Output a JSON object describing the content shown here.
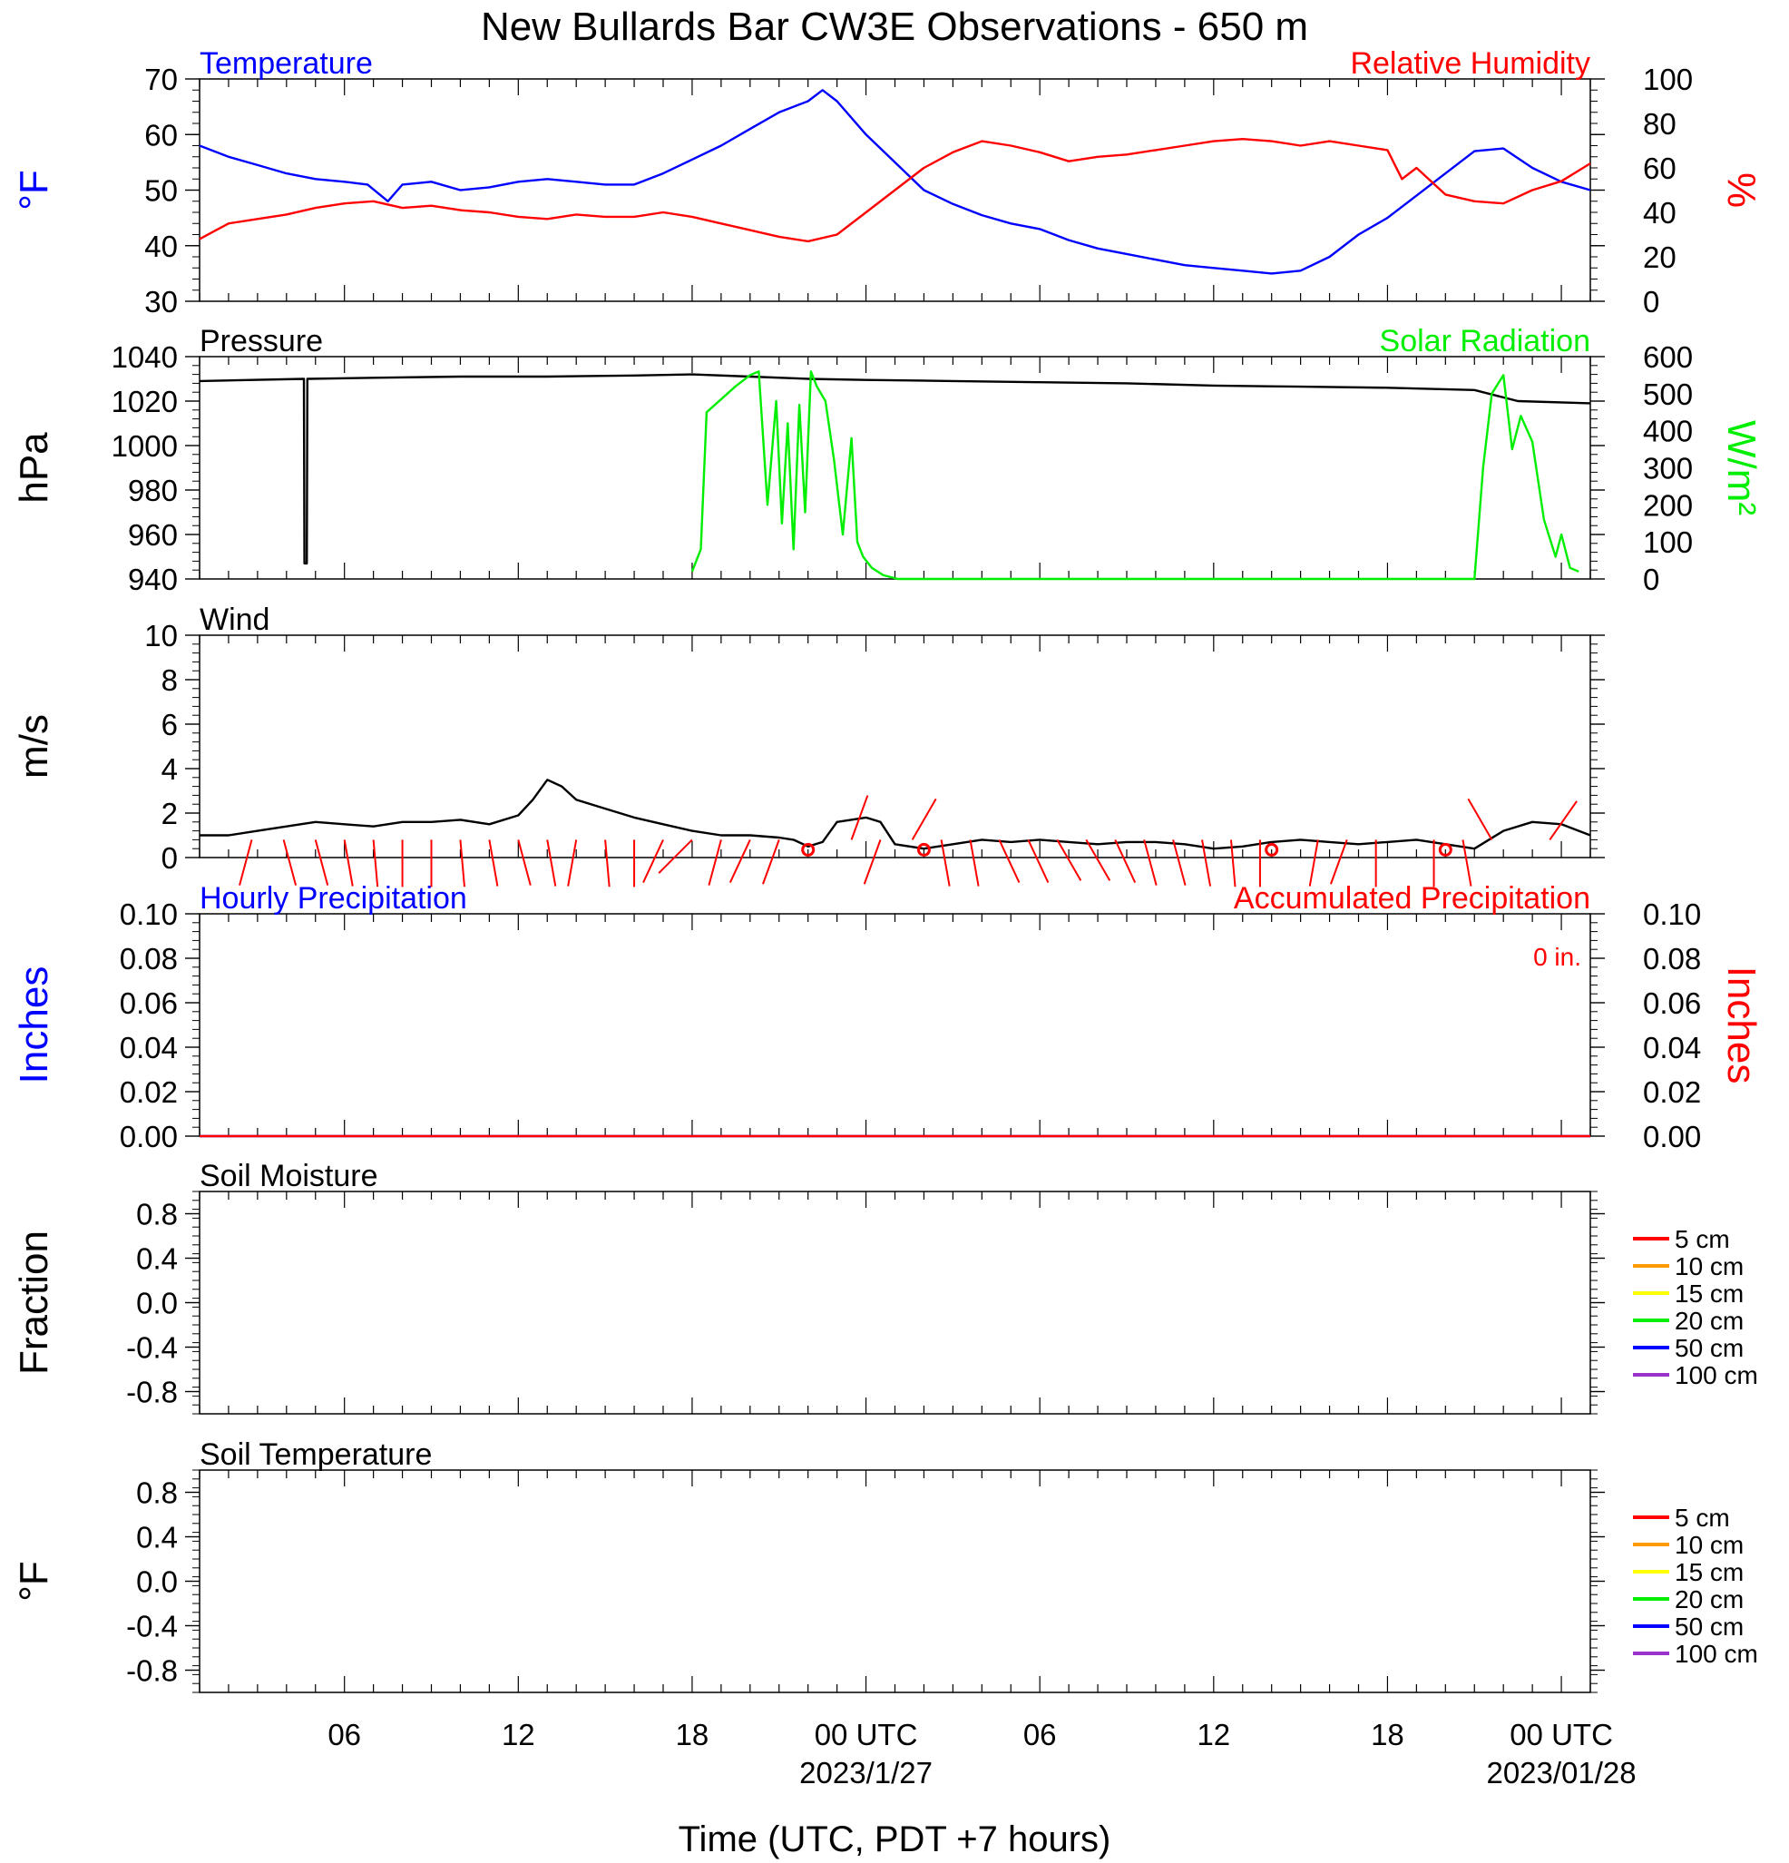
{
  "title": "New Bullards Bar CW3E Observations - 650 m",
  "x_axis": {
    "label": "Time (UTC, PDT +7 hours)",
    "range_hours": [
      0,
      48
    ],
    "ticks": [
      {
        "t": 5,
        "label": "06",
        "date": ""
      },
      {
        "t": 11,
        "label": "12",
        "date": ""
      },
      {
        "t": 17,
        "label": "18",
        "date": ""
      },
      {
        "t": 23,
        "label": "00 UTC",
        "date": "2023/1/27"
      },
      {
        "t": 29,
        "label": "06",
        "date": ""
      },
      {
        "t": 35,
        "label": "12",
        "date": ""
      },
      {
        "t": 41,
        "label": "18",
        "date": ""
      },
      {
        "t": 47,
        "label": "00 UTC",
        "date": "2023/01/28"
      }
    ]
  },
  "colors": {
    "blue": "#0000ff",
    "red": "#ff0000",
    "green": "#00ee00",
    "black": "#000000"
  },
  "chart_data": [
    {
      "type": "line",
      "title_left": "Temperature",
      "title_right": "Relative Humidity",
      "ylabel_left": "°F",
      "ylabel_right": "%",
      "ylim_left": [
        30,
        70
      ],
      "yticks_left": [
        "30",
        "40",
        "50",
        "60",
        "70"
      ],
      "ylim_right": [
        0,
        100
      ],
      "yticks_right": [
        "0",
        "20",
        "40",
        "60",
        "80",
        "100"
      ],
      "series": [
        {
          "name": "Temperature",
          "axis": "left",
          "color": "#0000ff",
          "x": [
            0,
            1,
            2,
            3,
            4,
            5,
            5.8,
            6.5,
            7,
            8,
            9,
            10,
            11,
            12,
            13,
            14,
            15,
            16,
            17,
            18,
            19,
            20,
            21,
            21.5,
            22,
            23,
            24,
            25,
            26,
            27,
            28,
            29,
            30,
            31,
            32,
            33,
            34,
            35,
            36,
            37,
            38,
            39,
            40,
            41,
            42,
            43,
            44,
            45,
            46,
            47,
            48
          ],
          "y": [
            58,
            56,
            54.5,
            53,
            52,
            51.5,
            51,
            48,
            51,
            51.5,
            50,
            50.5,
            51.5,
            52,
            51.5,
            51,
            51,
            53,
            55.5,
            58,
            61,
            64,
            66,
            68,
            66,
            60,
            55,
            50,
            47.5,
            45.5,
            44,
            43,
            41,
            39.5,
            38.5,
            37.5,
            36.5,
            36,
            35.5,
            35,
            35.5,
            38,
            42,
            45,
            49,
            53,
            57,
            57.5,
            54,
            51.5,
            50
          ]
        },
        {
          "name": "Relative Humidity",
          "axis": "right",
          "color": "#ff0000",
          "x": [
            0,
            1,
            2,
            3,
            4,
            5,
            6,
            7,
            8,
            9,
            10,
            11,
            12,
            13,
            14,
            15,
            16,
            17,
            18,
            19,
            20,
            21,
            22,
            23,
            24,
            25,
            26,
            27,
            28,
            29,
            30,
            31,
            32,
            33,
            34,
            35,
            36,
            37,
            38,
            39,
            40,
            41,
            41.5,
            42,
            43,
            44,
            45,
            46,
            47,
            48
          ],
          "y": [
            28,
            35,
            37,
            39,
            42,
            44,
            45,
            42,
            43,
            41,
            40,
            38,
            37,
            39,
            38,
            38,
            40,
            38,
            35,
            32,
            29,
            27,
            30,
            40,
            50,
            60,
            67,
            72,
            70,
            67,
            63,
            65,
            66,
            68,
            70,
            72,
            73,
            72,
            70,
            72,
            70,
            68,
            55,
            60,
            48,
            45,
            44,
            50,
            54,
            62
          ]
        }
      ]
    },
    {
      "type": "line",
      "title_left": "Pressure",
      "title_right": "Solar Radiation",
      "ylabel_left": "hPa",
      "ylabel_right": "W/m²",
      "ylim_left": [
        940,
        1040
      ],
      "yticks_left": [
        "940",
        "960",
        "980",
        "1000",
        "1020",
        "1040"
      ],
      "ylim_right": [
        0,
        600
      ],
      "yticks_right": [
        "0",
        "100",
        "200",
        "300",
        "400",
        "500",
        "600"
      ],
      "series": [
        {
          "name": "Pressure",
          "axis": "left",
          "color": "#000000",
          "x": [
            0,
            3.6,
            3.62,
            3.7,
            3.72,
            6,
            9,
            12,
            15,
            17,
            19,
            21,
            23,
            26,
            29,
            32,
            35,
            38,
            41,
            44,
            45.5,
            48
          ],
          "y": [
            1029,
            1030,
            947,
            947,
            1030,
            1030.5,
            1031,
            1031,
            1031.5,
            1032,
            1031,
            1030,
            1029.5,
            1029,
            1028.5,
            1028,
            1027,
            1026.5,
            1026,
            1025,
            1020,
            1019
          ]
        },
        {
          "name": "Solar Radiation",
          "axis": "right",
          "color": "#00ee00",
          "x": [
            17,
            17.3,
            17.5,
            18.5,
            19,
            19.3,
            19.6,
            19.9,
            20.1,
            20.3,
            20.5,
            20.7,
            20.9,
            21.1,
            21.3,
            21.6,
            21.9,
            22.2,
            22.5,
            22.7,
            22.9,
            23.2,
            23.6,
            24.1,
            25,
            26,
            27,
            28,
            29,
            30,
            31,
            32,
            33,
            34,
            35,
            36,
            37,
            38,
            39,
            40,
            41,
            42,
            43,
            44,
            44.3,
            44.6,
            45,
            45.3,
            45.6,
            46,
            46.4,
            46.8,
            47,
            47.3,
            47.6
          ],
          "y": [
            20,
            80,
            450,
            520,
            550,
            560,
            200,
            480,
            150,
            420,
            80,
            470,
            180,
            560,
            520,
            480,
            320,
            120,
            380,
            100,
            60,
            30,
            10,
            0,
            0,
            0,
            0,
            0,
            0,
            0,
            0,
            0,
            0,
            0,
            0,
            0,
            0,
            0,
            0,
            0,
            0,
            0,
            0,
            0,
            300,
            500,
            550,
            350,
            440,
            370,
            160,
            60,
            120,
            30,
            20
          ]
        }
      ]
    },
    {
      "type": "line",
      "title_left": "Wind",
      "ylabel_left": "m/s",
      "ylim_left": [
        0,
        10
      ],
      "yticks_left": [
        "0",
        "2",
        "4",
        "6",
        "8",
        "10"
      ],
      "series": [
        {
          "name": "Wind",
          "axis": "left",
          "color": "#000000",
          "x": [
            0,
            1,
            2,
            3,
            4,
            5,
            6,
            7,
            8,
            9,
            10,
            11,
            11.5,
            12,
            12.5,
            13,
            14,
            15,
            16,
            17,
            18,
            19,
            20,
            20.5,
            21,
            21.5,
            22,
            23,
            23.5,
            24,
            25,
            26,
            27,
            28,
            29,
            30,
            31,
            32,
            33,
            34,
            35,
            36,
            37,
            38,
            39,
            40,
            41,
            42,
            43,
            44,
            45,
            46,
            47,
            48
          ],
          "y": [
            1.0,
            1.0,
            1.2,
            1.4,
            1.6,
            1.5,
            1.4,
            1.6,
            1.6,
            1.7,
            1.5,
            1.9,
            2.6,
            3.5,
            3.2,
            2.6,
            2.2,
            1.8,
            1.5,
            1.2,
            1.0,
            1.0,
            0.9,
            0.8,
            0.5,
            0.7,
            1.6,
            1.8,
            1.6,
            0.6,
            0.4,
            0.6,
            0.8,
            0.7,
            0.8,
            0.7,
            0.6,
            0.7,
            0.7,
            0.6,
            0.4,
            0.5,
            0.7,
            0.8,
            0.7,
            0.6,
            0.7,
            0.8,
            0.6,
            0.4,
            1.2,
            1.6,
            1.5,
            1.0
          ]
        }
      ],
      "barbs": {
        "t": [
          1.8,
          2.9,
          4.0,
          5.0,
          6.0,
          7.0,
          8.0,
          9.0,
          10.0,
          11.0,
          12.0,
          13.0,
          14.0,
          15.0,
          16.0,
          17.0,
          18.0,
          19.0,
          20.0,
          22.5,
          23.5,
          24.6,
          25.6,
          26.6,
          27.6,
          28.6,
          29.6,
          30.6,
          31.6,
          32.6,
          33.6,
          34.6,
          35.6,
          36.6,
          38.6,
          39.6,
          40.6,
          42.6,
          43.6,
          44.6,
          46.6
        ],
        "dir_deg": [
          195,
          165,
          165,
          170,
          175,
          180,
          180,
          175,
          170,
          165,
          170,
          190,
          175,
          180,
          205,
          225,
          195,
          205,
          200,
          20,
          200,
          30,
          170,
          170,
          155,
          155,
          150,
          150,
          155,
          165,
          165,
          170,
          175,
          180,
          190,
          200,
          180,
          180,
          170,
          330,
          35
        ]
      },
      "calm_markers_t": [
        21,
        25,
        37,
        43
      ]
    },
    {
      "type": "line",
      "title_left": "Hourly Precipitation",
      "title_right": "Accumulated Precipitation",
      "annotation": "0 in.",
      "ylabel_left": "Inches",
      "ylabel_right": "Inches",
      "ylim_left": [
        0,
        0.1
      ],
      "yticks_left": [
        "0.00",
        "0.02",
        "0.04",
        "0.06",
        "0.08",
        "0.10"
      ],
      "ylim_right": [
        0,
        0.1
      ],
      "yticks_right": [
        "0.00",
        "0.02",
        "0.04",
        "0.06",
        "0.08",
        "0.10"
      ],
      "series": [
        {
          "name": "Hourly Precipitation",
          "axis": "left",
          "color": "#0000ff",
          "x": [
            0,
            48
          ],
          "y": [
            0,
            0
          ]
        },
        {
          "name": "Accumulated Precipitation",
          "axis": "right",
          "color": "#ff0000",
          "x": [
            0,
            48
          ],
          "y": [
            0,
            0
          ]
        }
      ]
    },
    {
      "type": "line",
      "title_left": "Soil Moisture",
      "ylabel_left": "Fraction",
      "ylim_left": [
        -1,
        1
      ],
      "yticks_left": [
        "-0.8",
        "-0.4",
        "0.0",
        "0.4",
        "0.8"
      ],
      "legend": [
        {
          "label": "5 cm",
          "color": "#ff0000"
        },
        {
          "label": "10 cm",
          "color": "#ff9900"
        },
        {
          "label": "15 cm",
          "color": "#ffff00"
        },
        {
          "label": "20 cm",
          "color": "#00ee00"
        },
        {
          "label": "50 cm",
          "color": "#0000ff"
        },
        {
          "label": "100 cm",
          "color": "#9933cc"
        }
      ],
      "series": []
    },
    {
      "type": "line",
      "title_left": "Soil Temperature",
      "ylabel_left": "°F",
      "ylim_left": [
        -1,
        1
      ],
      "yticks_left": [
        "-0.8",
        "-0.4",
        "0.0",
        "0.4",
        "0.8"
      ],
      "legend": [
        {
          "label": "5 cm",
          "color": "#ff0000"
        },
        {
          "label": "10 cm",
          "color": "#ff9900"
        },
        {
          "label": "15 cm",
          "color": "#ffff00"
        },
        {
          "label": "20 cm",
          "color": "#00ee00"
        },
        {
          "label": "50 cm",
          "color": "#0000ff"
        },
        {
          "label": "100 cm",
          "color": "#9933cc"
        }
      ],
      "series": []
    }
  ]
}
